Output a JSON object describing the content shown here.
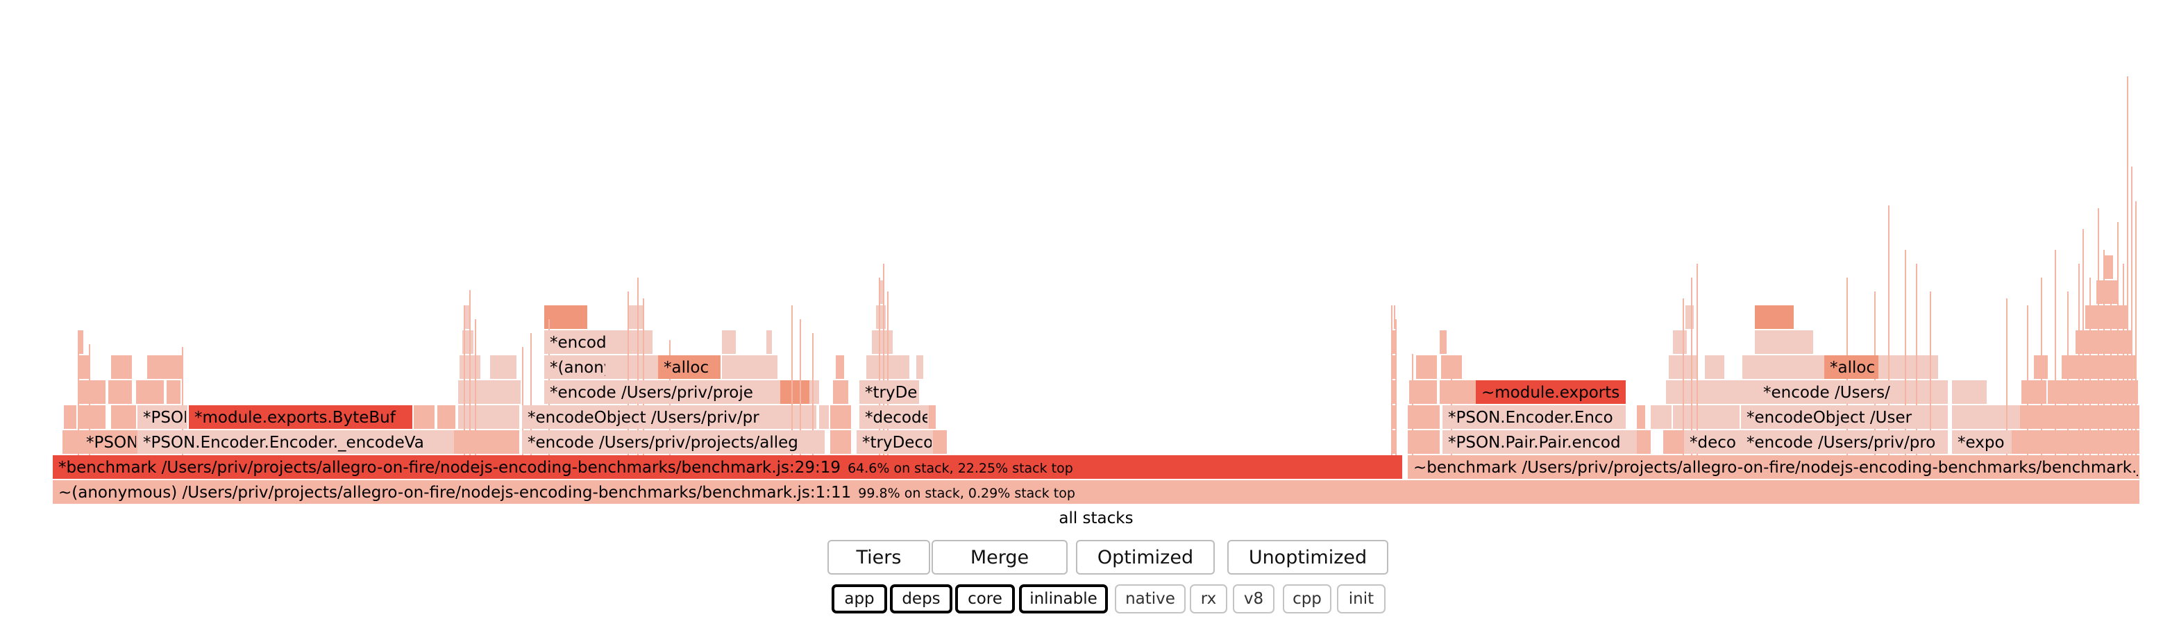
{
  "colors": {
    "hot": "#ea4a3c",
    "warm": "#f0967b",
    "light": "#f5b5a5",
    "pale": "#f2cbc3",
    "palest": "#f7dcd6"
  },
  "flame": {
    "root_label": "all stacks",
    "frames": [
      {
        "id": "anon-main",
        "label": "~(anonymous) /Users/priv/projects/allegro-on-fire/nodejs-encoding-benchmarks/benchmark.js:1:11",
        "stat": "99.8% on stack, 0.29% stack top"
      },
      {
        "id": "benchmark-hot",
        "label": "*benchmark /Users/priv/projects/allegro-on-fire/nodejs-encoding-benchmarks/benchmark.js:29:19",
        "stat": "64.6% on stack, 22.25% stack top"
      },
      {
        "id": "benchmark-opt",
        "label": "~benchmark /Users/priv/projects/allegro-on-fire/nodejs-encoding-benchmarks/benchmark.js",
        "stat": ""
      },
      {
        "id": "pson-1",
        "label": "*PSON",
        "stat": ""
      },
      {
        "id": "pson-encodeva",
        "label": "*PSON.Encoder.Encoder._encodeVa",
        "stat": ""
      },
      {
        "id": "pson-2",
        "label": "*PSON",
        "stat": ""
      },
      {
        "id": "bytebuf",
        "label": "*module.exports.ByteBuf",
        "stat": ""
      },
      {
        "id": "encode-1",
        "label": "*encode /Users/priv/projects/alleg",
        "stat": ""
      },
      {
        "id": "encodeobject-1",
        "label": "*encodeObject /Users/priv/pr",
        "stat": ""
      },
      {
        "id": "encode-2",
        "label": "*encode /Users/priv/proje",
        "stat": ""
      },
      {
        "id": "anon-2",
        "label": "*(anony",
        "stat": ""
      },
      {
        "id": "encode-3",
        "label": "*encode",
        "stat": ""
      },
      {
        "id": "alloc-1",
        "label": "*alloc",
        "stat": ""
      },
      {
        "id": "trydeco",
        "label": "*tryDeco",
        "stat": ""
      },
      {
        "id": "decode-1",
        "label": "*decode",
        "stat": ""
      },
      {
        "id": "tryde",
        "label": "*tryDe",
        "stat": ""
      },
      {
        "id": "pson-pair",
        "label": "*PSON.Pair.Pair.encod",
        "stat": ""
      },
      {
        "id": "pson-encoder-2",
        "label": "*PSON.Encoder.Enco",
        "stat": ""
      },
      {
        "id": "module-exports-2",
        "label": "~module.exports",
        "stat": ""
      },
      {
        "id": "deco",
        "label": "*deco",
        "stat": ""
      },
      {
        "id": "encode-4",
        "label": "*encode /Users/priv/pro",
        "stat": ""
      },
      {
        "id": "encodeobject-2",
        "label": "*encodeObject /User",
        "stat": ""
      },
      {
        "id": "encode-5",
        "label": "*encode /Users/",
        "stat": ""
      },
      {
        "id": "expo",
        "label": "*expo",
        "stat": ""
      },
      {
        "id": "alloc-2",
        "label": "*alloc",
        "stat": ""
      }
    ]
  },
  "tier_buttons": [
    {
      "id": "tiers",
      "label": "Tiers"
    },
    {
      "id": "merge",
      "label": "Merge"
    },
    {
      "id": "optimized",
      "label": "Optimized"
    },
    {
      "id": "unoptimized",
      "label": "Unoptimized"
    }
  ],
  "filters": [
    {
      "id": "app",
      "label": "app",
      "active": true
    },
    {
      "id": "deps",
      "label": "deps",
      "active": true
    },
    {
      "id": "core",
      "label": "core",
      "active": true
    },
    {
      "id": "inlinable",
      "label": "inlinable",
      "active": true
    },
    {
      "id": "native",
      "label": "native",
      "active": false
    },
    {
      "id": "rx",
      "label": "rx",
      "active": false
    },
    {
      "id": "v8",
      "label": "v8",
      "active": false
    },
    {
      "id": "cpp",
      "label": "cpp",
      "active": false
    },
    {
      "id": "init",
      "label": "init",
      "active": false
    }
  ]
}
